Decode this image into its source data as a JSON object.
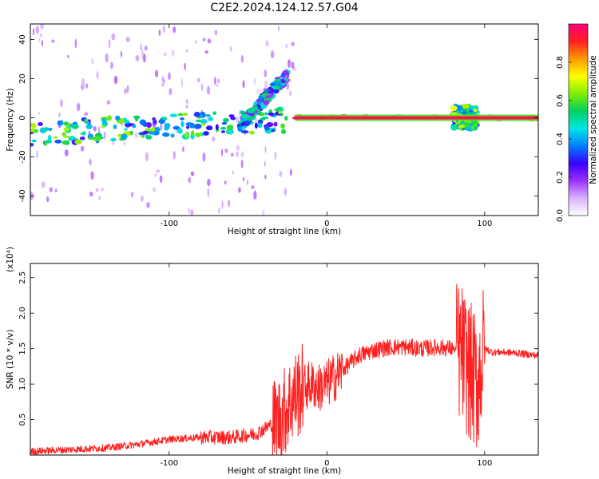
{
  "title": "C2E2.2024.124.12.57.G04",
  "chart_data": [
    {
      "type": "heatmap",
      "xlabel": "Height of straight line (km)",
      "ylabel": "Frequency (Hz)",
      "xlim": [
        -188,
        134
      ],
      "ylim": [
        -50,
        48
      ],
      "x_ticks": [
        -100,
        0,
        100
      ],
      "y_ticks": [
        -40,
        -20,
        0,
        20,
        40
      ],
      "colorbar": {
        "label": "Normalized spectral amplitude",
        "range": [
          0,
          1
        ],
        "ticks": [
          "0.0",
          "0.2",
          "0.4",
          "0.6",
          "0.8"
        ],
        "colors": [
          "#ffffff",
          "#d9b3ff",
          "#9b30ff",
          "#3a00ff",
          "#0080ff",
          "#00e6e6",
          "#00d060",
          "#80f000",
          "#ffff00",
          "#ff9900",
          "#ff2020",
          "#ff0080"
        ]
      },
      "features": [
        {
          "x_range": [
            -188,
            -25
          ],
          "freq_center": [
            -8,
            -1
          ],
          "freq_halfwidth_hz": 6,
          "level": 0.45
        },
        {
          "x_range": [
            -55,
            -25
          ],
          "freq_center": [
            -4,
            22
          ],
          "freq_halfwidth_hz": 3,
          "level": 0.35
        },
        {
          "x_range": [
            -20,
            134
          ],
          "freq_center": [
            0,
            0
          ],
          "freq_halfwidth_hz": 1,
          "level": 0.95
        },
        {
          "x_range": [
            80,
            95
          ],
          "freq_center": [
            0,
            0
          ],
          "freq_halfwidth_hz": 6,
          "level": 0.5
        }
      ]
    },
    {
      "type": "line",
      "xlabel": "Height of straight line (km)",
      "ylabel": "SNR (10 * v/v)",
      "y_multiplier": "(x10⁴)",
      "xlim": [
        -188,
        134
      ],
      "ylim": [
        0,
        2.7
      ],
      "x_ticks": [
        -100,
        0,
        100
      ],
      "y_ticks": [
        "0.5",
        "1.0",
        "1.5",
        "2.0",
        "2.5"
      ],
      "series_color": "#ff2020",
      "x": [
        -188,
        -160,
        -140,
        -120,
        -100,
        -80,
        -60,
        -45,
        -30,
        -22,
        -15,
        -10,
        -5,
        0,
        5,
        10,
        20,
        30,
        40,
        50,
        60,
        70,
        80,
        85,
        90,
        95,
        100,
        105,
        110,
        120,
        134
      ],
      "y": [
        0.05,
        0.08,
        0.1,
        0.15,
        0.22,
        0.25,
        0.25,
        0.3,
        0.5,
        0.8,
        0.95,
        1.0,
        0.95,
        1.0,
        1.1,
        1.2,
        1.4,
        1.48,
        1.52,
        1.52,
        1.5,
        1.52,
        1.5,
        1.45,
        1.2,
        1.0,
        1.5,
        1.45,
        1.45,
        1.44,
        1.4
      ]
    }
  ]
}
